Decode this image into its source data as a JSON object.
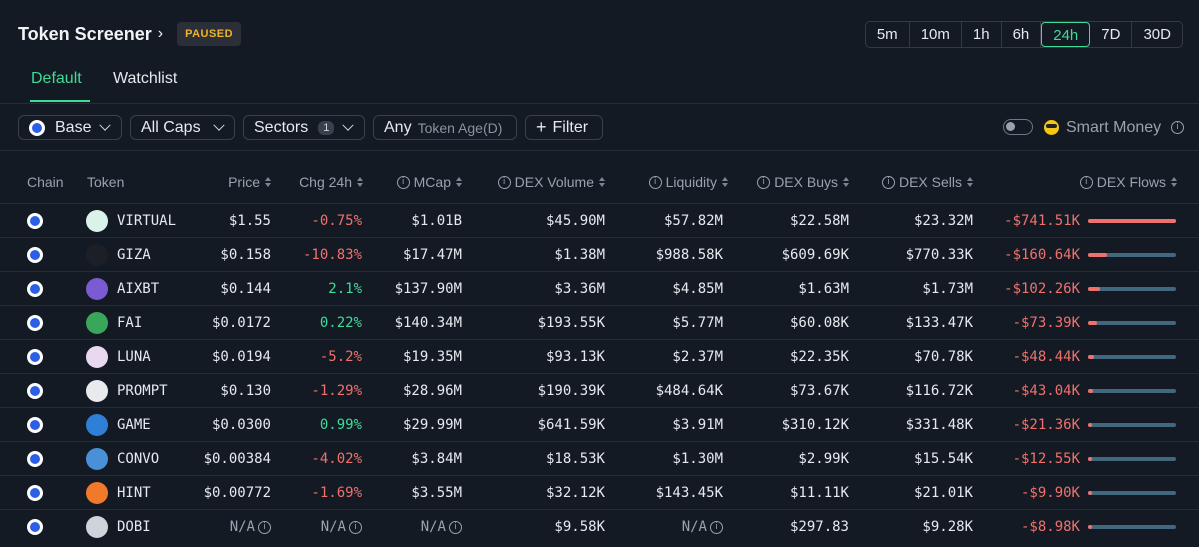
{
  "header": {
    "title": "Token Screener",
    "status_badge": "PAUSED",
    "timeframes": [
      "5m",
      "10m",
      "1h",
      "6h",
      "24h",
      "7D",
      "30D"
    ],
    "active_timeframe": "24h"
  },
  "tabs": [
    {
      "label": "Default",
      "active": true
    },
    {
      "label": "Watchlist",
      "active": false
    }
  ],
  "filters": {
    "chain": "Base",
    "caps": "All Caps",
    "sectors": "Sectors",
    "sectors_count": "1",
    "token_age_value": "Any",
    "token_age_label": "Token Age(D)",
    "filter_label": "Filter",
    "filter_icon": "+",
    "smart_money_label": "Smart Money",
    "smart_money_enabled": false
  },
  "columns": {
    "chain": "Chain",
    "token": "Token",
    "price": "Price",
    "chg": "Chg 24h",
    "mcap": "MCap",
    "volume": "DEX Volume",
    "liquidity": "Liquidity",
    "buys": "DEX Buys",
    "sells": "DEX Sells",
    "flows": "DEX Flows"
  },
  "rows": [
    {
      "token": "VIRTUAL",
      "price": "$1.55",
      "chg": "-0.75%",
      "chg_dir": "neg",
      "mcap": "$1.01B",
      "volume": "$45.90M",
      "liquidity": "$57.82M",
      "buys": "$22.58M",
      "sells": "$23.32M",
      "flows": "-$741.51K",
      "flow_fraction": 1.0,
      "icon_color": "#d9f2ea"
    },
    {
      "token": "GIZA",
      "price": "$0.158",
      "chg": "-10.83%",
      "chg_dir": "neg",
      "mcap": "$17.47M",
      "volume": "$1.38M",
      "liquidity": "$988.58K",
      "buys": "$609.69K",
      "sells": "$770.33K",
      "flows": "-$160.64K",
      "flow_fraction": 0.22,
      "icon_color": "#1c1f26"
    },
    {
      "token": "AIXBT",
      "price": "$0.144",
      "chg": "2.1%",
      "chg_dir": "pos",
      "mcap": "$137.90M",
      "volume": "$3.36M",
      "liquidity": "$4.85M",
      "buys": "$1.63M",
      "sells": "$1.73M",
      "flows": "-$102.26K",
      "flow_fraction": 0.14,
      "icon_color": "#7a5bd1"
    },
    {
      "token": "FAI",
      "price": "$0.0172",
      "chg": "0.22%",
      "chg_dir": "pos",
      "mcap": "$140.34M",
      "volume": "$193.55K",
      "liquidity": "$5.77M",
      "buys": "$60.08K",
      "sells": "$133.47K",
      "flows": "-$73.39K",
      "flow_fraction": 0.1,
      "icon_color": "#3aa65a"
    },
    {
      "token": "LUNA",
      "price": "$0.0194",
      "chg": "-5.2%",
      "chg_dir": "neg",
      "mcap": "$19.35M",
      "volume": "$93.13K",
      "liquidity": "$2.37M",
      "buys": "$22.35K",
      "sells": "$70.78K",
      "flows": "-$48.44K",
      "flow_fraction": 0.065,
      "icon_color": "#e8d8f0"
    },
    {
      "token": "PROMPT",
      "price": "$0.130",
      "chg": "-1.29%",
      "chg_dir": "neg",
      "mcap": "$28.96M",
      "volume": "$190.39K",
      "liquidity": "$484.64K",
      "buys": "$73.67K",
      "sells": "$116.72K",
      "flows": "-$43.04K",
      "flow_fraction": 0.058,
      "icon_color": "#e9eaee"
    },
    {
      "token": "GAME",
      "price": "$0.0300",
      "chg": "0.99%",
      "chg_dir": "pos",
      "mcap": "$29.99M",
      "volume": "$641.59K",
      "liquidity": "$3.91M",
      "buys": "$310.12K",
      "sells": "$331.48K",
      "flows": "-$21.36K",
      "flow_fraction": 0.03,
      "icon_color": "#2f7fd6"
    },
    {
      "token": "CONVO",
      "price": "$0.00384",
      "chg": "-4.02%",
      "chg_dir": "neg",
      "mcap": "$3.84M",
      "volume": "$18.53K",
      "liquidity": "$1.30M",
      "buys": "$2.99K",
      "sells": "$15.54K",
      "flows": "-$12.55K",
      "flow_fraction": 0.018,
      "icon_color": "#4a90d9"
    },
    {
      "token": "HINT",
      "price": "$0.00772",
      "chg": "-1.69%",
      "chg_dir": "neg",
      "mcap": "$3.55M",
      "volume": "$32.12K",
      "liquidity": "$143.45K",
      "buys": "$11.11K",
      "sells": "$21.01K",
      "flows": "-$9.90K",
      "flow_fraction": 0.014,
      "icon_color": "#f07a2a"
    },
    {
      "token": "DOBI",
      "price": "N/A",
      "chg": "N/A",
      "chg_dir": "na",
      "mcap": "N/A",
      "volume": "$9.58K",
      "liquidity": "N/A",
      "buys": "$297.83",
      "sells": "$9.28K",
      "flows": "-$8.98K",
      "flow_fraction": 0.012,
      "icon_color": "#cfd3da"
    }
  ]
}
